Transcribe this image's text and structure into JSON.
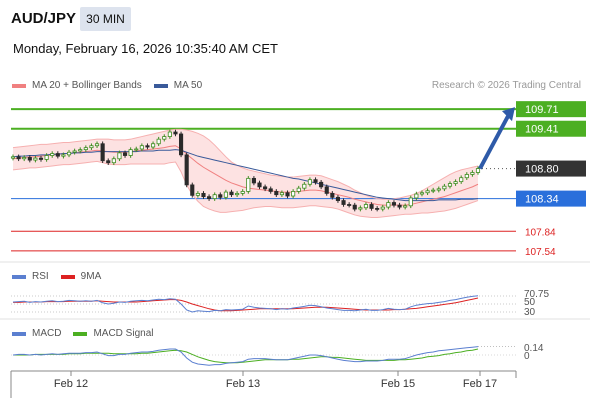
{
  "header": {
    "symbol": "AUD/JPY",
    "timeframe": "30 MIN",
    "datetime": "Monday, February 16, 2026 10:35:40 AM CET"
  },
  "legend_main": {
    "bollinger_label": "MA 20 + Bollinger Bands",
    "ma50_label": "MA 50",
    "bollinger_color": "#f08080",
    "ma50_color": "#3a5a9a"
  },
  "research_text": "Research © 2026 Trading Central",
  "rsi_panel": {
    "rsi_label": "RSI",
    "ma9_label": "9MA",
    "rsi_color": "#5b7fd0",
    "ma9_color": "#dd2222"
  },
  "macd_panel": {
    "macd_label": "MACD",
    "signal_label": "MACD Signal",
    "macd_color": "#5b7fd0",
    "signal_color": "#4caf22"
  },
  "x_axis": [
    "Feb 12",
    "Feb 13",
    "Feb 15",
    "Feb 17"
  ],
  "chart_data": [
    {
      "type": "candlestick",
      "title": "AUD/JPY 30 MIN",
      "x_ticks": [
        "Feb 12",
        "Feb 13",
        "Feb 15",
        "Feb 17"
      ],
      "levels": [
        {
          "value": 109.71,
          "label": "109.71",
          "kind": "resistance",
          "color": "#4caf22"
        },
        {
          "value": 109.41,
          "label": "109.41",
          "kind": "resistance",
          "color": "#4caf22"
        },
        {
          "value": 108.8,
          "label": "108.80",
          "kind": "last-price",
          "color": "#333333"
        },
        {
          "value": 108.34,
          "label": "108.34",
          "kind": "pivot",
          "color": "#2a6fdb"
        },
        {
          "value": 107.84,
          "label": "107.84",
          "kind": "support",
          "color": "#dd2222"
        },
        {
          "value": 107.54,
          "label": "107.54",
          "kind": "support",
          "color": "#dd2222"
        }
      ],
      "ylim": [
        107.4,
        109.85
      ],
      "forecast_arrow": {
        "from": 108.8,
        "to": 109.71,
        "color": "#2e5aa8"
      },
      "price_path": [
        108.98,
        108.95,
        108.97,
        108.93,
        108.96,
        108.94,
        109.0,
        109.03,
        108.99,
        109.01,
        109.05,
        109.07,
        109.09,
        109.12,
        109.15,
        109.18,
        108.92,
        108.89,
        108.95,
        109.04,
        109.0,
        109.09,
        109.1,
        109.15,
        109.13,
        109.18,
        109.25,
        109.29,
        109.36,
        109.33,
        109.01,
        108.55,
        108.39,
        108.42,
        108.37,
        108.34,
        108.4,
        108.36,
        108.44,
        108.4,
        108.42,
        108.45,
        108.65,
        108.58,
        108.52,
        108.49,
        108.45,
        108.4,
        108.43,
        108.38,
        108.45,
        108.5,
        108.56,
        108.63,
        108.59,
        108.52,
        108.42,
        108.36,
        108.31,
        108.25,
        108.24,
        108.18,
        108.2,
        108.25,
        108.19,
        108.18,
        108.21,
        108.28,
        108.24,
        108.21,
        108.23,
        108.35,
        108.41,
        108.43,
        108.46,
        108.47,
        108.49,
        108.53,
        108.57,
        108.6,
        108.66,
        108.71,
        108.74,
        108.8
      ],
      "ma20": [
        108.95,
        108.96,
        108.97,
        108.98,
        108.98,
        108.99,
        109.0,
        109.01,
        109.02,
        109.03,
        109.03,
        109.04,
        109.05,
        109.06,
        109.07,
        109.08,
        109.07,
        109.06,
        109.05,
        109.05,
        109.05,
        109.06,
        109.07,
        109.08,
        109.09,
        109.1,
        109.11,
        109.12,
        109.14,
        109.15,
        109.1,
        109.02,
        108.95,
        108.88,
        108.82,
        108.77,
        108.72,
        108.67,
        108.62,
        108.58,
        108.55,
        108.52,
        108.5,
        108.49,
        108.48,
        108.47,
        108.46,
        108.45,
        108.44,
        108.44,
        108.44,
        108.45,
        108.46,
        108.47,
        108.47,
        108.46,
        108.44,
        108.42,
        108.4,
        108.38,
        108.36,
        108.33,
        108.31,
        108.29,
        108.27,
        108.25,
        108.24,
        108.24,
        108.24,
        108.24,
        108.24,
        108.25,
        108.27,
        108.29,
        108.31,
        108.33,
        108.35,
        108.37,
        108.4,
        108.43,
        108.46,
        108.49,
        108.52,
        108.56
      ],
      "bb_upper": [
        109.12,
        109.13,
        109.14,
        109.15,
        109.16,
        109.17,
        109.17,
        109.18,
        109.19,
        109.2,
        109.2,
        109.21,
        109.22,
        109.23,
        109.24,
        109.25,
        109.25,
        109.25,
        109.24,
        109.24,
        109.24,
        109.25,
        109.27,
        109.29,
        109.31,
        109.33,
        109.35,
        109.37,
        109.39,
        109.4,
        109.4,
        109.39,
        109.37,
        109.34,
        109.3,
        109.24,
        109.16,
        109.07,
        108.98,
        108.9,
        108.85,
        108.81,
        108.78,
        108.76,
        108.74,
        108.72,
        108.7,
        108.69,
        108.68,
        108.67,
        108.67,
        108.68,
        108.69,
        108.7,
        108.7,
        108.69,
        108.66,
        108.63,
        108.6,
        108.56,
        108.52,
        108.47,
        108.43,
        108.39,
        108.36,
        108.34,
        108.33,
        108.33,
        108.34,
        108.35,
        108.37,
        108.39,
        108.42,
        108.46,
        108.51,
        108.56,
        108.61,
        108.66,
        108.71,
        108.75,
        108.78,
        108.8,
        108.82,
        108.84
      ],
      "bb_lower": [
        108.78,
        108.79,
        108.8,
        108.81,
        108.81,
        108.82,
        108.83,
        108.84,
        108.85,
        108.86,
        108.86,
        108.87,
        108.88,
        108.89,
        108.9,
        108.91,
        108.89,
        108.87,
        108.86,
        108.86,
        108.86,
        108.87,
        108.87,
        108.87,
        108.87,
        108.87,
        108.87,
        108.87,
        108.89,
        108.9,
        108.75,
        108.55,
        108.4,
        108.3,
        108.22,
        108.18,
        108.15,
        108.13,
        108.13,
        108.14,
        108.15,
        108.16,
        108.18,
        108.2,
        108.21,
        108.22,
        108.22,
        108.21,
        108.2,
        108.2,
        108.2,
        108.21,
        108.22,
        108.23,
        108.23,
        108.22,
        108.21,
        108.2,
        108.18,
        108.15,
        108.12,
        108.09,
        108.07,
        108.06,
        108.05,
        108.05,
        108.06,
        108.07,
        108.08,
        108.09,
        108.1,
        108.1,
        108.11,
        108.12,
        108.12,
        108.13,
        108.14,
        108.15,
        108.17,
        108.19,
        108.22,
        108.25,
        108.28,
        108.31
      ],
      "ma50": [
        108.98,
        108.99,
        108.99,
        109.0,
        109.0,
        109.01,
        109.01,
        109.02,
        109.02,
        109.03,
        109.03,
        109.04,
        109.04,
        109.05,
        109.05,
        109.06,
        109.06,
        109.06,
        109.06,
        109.06,
        109.06,
        109.06,
        109.06,
        109.07,
        109.07,
        109.07,
        109.08,
        109.08,
        109.08,
        109.09,
        109.08,
        109.05,
        109.02,
        108.99,
        108.97,
        108.95,
        108.93,
        108.91,
        108.89,
        108.87,
        108.85,
        108.83,
        108.81,
        108.79,
        108.77,
        108.75,
        108.73,
        108.71,
        108.69,
        108.67,
        108.65,
        108.64,
        108.62,
        108.6,
        108.58,
        108.56,
        108.54,
        108.52,
        108.5,
        108.48,
        108.46,
        108.44,
        108.42,
        108.4,
        108.38,
        108.36,
        108.35,
        108.34,
        108.33,
        108.32,
        108.31,
        108.31,
        108.31,
        108.31,
        108.31,
        108.31,
        108.32,
        108.32,
        108.32,
        108.32,
        108.33,
        108.33,
        108.33,
        108.34
      ]
    },
    {
      "type": "line",
      "name": "RSI panel",
      "y_ticks": [
        "70.75",
        "50",
        "30"
      ],
      "ylim": [
        0,
        100
      ],
      "current_value": "70.75",
      "series": [
        {
          "name": "RSI",
          "values": [
            55,
            56,
            57,
            54,
            56,
            55,
            57,
            58,
            56,
            57,
            59,
            58,
            57,
            58,
            57,
            59,
            53,
            50,
            52,
            55,
            54,
            57,
            58,
            59,
            58,
            60,
            62,
            61,
            63,
            62,
            50,
            35,
            30,
            33,
            32,
            31,
            34,
            33,
            36,
            35,
            36,
            37,
            45,
            42,
            40,
            39,
            38,
            36,
            38,
            37,
            40,
            42,
            44,
            47,
            46,
            43,
            40,
            38,
            36,
            34,
            34,
            33,
            35,
            37,
            34,
            34,
            36,
            39,
            37,
            36,
            37,
            43,
            47,
            49,
            51,
            52,
            54,
            56,
            59,
            61,
            64,
            67,
            69,
            70.75
          ]
        },
        {
          "name": "9MA",
          "values": [
            54,
            54,
            55,
            55,
            55,
            55,
            56,
            56,
            56,
            56,
            57,
            57,
            57,
            57,
            57,
            58,
            57,
            56,
            55,
            55,
            55,
            55,
            55,
            56,
            57,
            58,
            59,
            60,
            61,
            61,
            59,
            55,
            50,
            46,
            42,
            38,
            35,
            33,
            33,
            33,
            34,
            35,
            36,
            37,
            38,
            38,
            38,
            38,
            38,
            38,
            38,
            39,
            40,
            41,
            42,
            42,
            42,
            41,
            40,
            39,
            38,
            37,
            36,
            35,
            35,
            35,
            35,
            35,
            36,
            36,
            37,
            38,
            39,
            41,
            43,
            45,
            47,
            49,
            51,
            53,
            56,
            59,
            62,
            65
          ]
        }
      ]
    },
    {
      "type": "line",
      "name": "MACD panel",
      "y_ticks": [
        "0.14",
        "0"
      ],
      "current_value": "0.14",
      "ylim": [
        -0.25,
        0.25
      ],
      "series": [
        {
          "name": "MACD",
          "values": [
            0.0,
            0.01,
            0.01,
            0.0,
            0.01,
            0.0,
            0.01,
            0.02,
            0.01,
            0.02,
            0.03,
            0.03,
            0.03,
            0.04,
            0.04,
            0.05,
            0.02,
            -0.01,
            -0.01,
            0.01,
            0.01,
            0.03,
            0.04,
            0.05,
            0.05,
            0.06,
            0.08,
            0.09,
            0.1,
            0.1,
            0.05,
            -0.05,
            -0.12,
            -0.15,
            -0.16,
            -0.17,
            -0.16,
            -0.16,
            -0.14,
            -0.13,
            -0.12,
            -0.11,
            -0.07,
            -0.06,
            -0.06,
            -0.06,
            -0.07,
            -0.08,
            -0.08,
            -0.08,
            -0.06,
            -0.04,
            -0.02,
            0.0,
            0.0,
            -0.01,
            -0.03,
            -0.05,
            -0.07,
            -0.09,
            -0.1,
            -0.11,
            -0.11,
            -0.1,
            -0.1,
            -0.1,
            -0.09,
            -0.07,
            -0.07,
            -0.07,
            -0.06,
            -0.03,
            0.0,
            0.02,
            0.04,
            0.05,
            0.07,
            0.08,
            0.09,
            0.1,
            0.11,
            0.12,
            0.13,
            0.14
          ]
        },
        {
          "name": "MACD Signal",
          "values": [
            0.0,
            0.0,
            0.0,
            0.0,
            0.01,
            0.01,
            0.01,
            0.01,
            0.01,
            0.01,
            0.02,
            0.02,
            0.02,
            0.03,
            0.03,
            0.03,
            0.03,
            0.03,
            0.02,
            0.02,
            0.02,
            0.02,
            0.02,
            0.03,
            0.03,
            0.04,
            0.05,
            0.06,
            0.07,
            0.08,
            0.07,
            0.05,
            0.01,
            -0.03,
            -0.06,
            -0.09,
            -0.11,
            -0.12,
            -0.13,
            -0.13,
            -0.13,
            -0.12,
            -0.11,
            -0.1,
            -0.09,
            -0.08,
            -0.08,
            -0.08,
            -0.08,
            -0.08,
            -0.07,
            -0.07,
            -0.06,
            -0.05,
            -0.04,
            -0.03,
            -0.03,
            -0.04,
            -0.04,
            -0.05,
            -0.06,
            -0.07,
            -0.08,
            -0.09,
            -0.09,
            -0.09,
            -0.09,
            -0.09,
            -0.09,
            -0.08,
            -0.08,
            -0.07,
            -0.06,
            -0.05,
            -0.03,
            -0.02,
            -0.01,
            0.01,
            0.02,
            0.04,
            0.05,
            0.07,
            0.08,
            0.1
          ]
        }
      ]
    }
  ]
}
